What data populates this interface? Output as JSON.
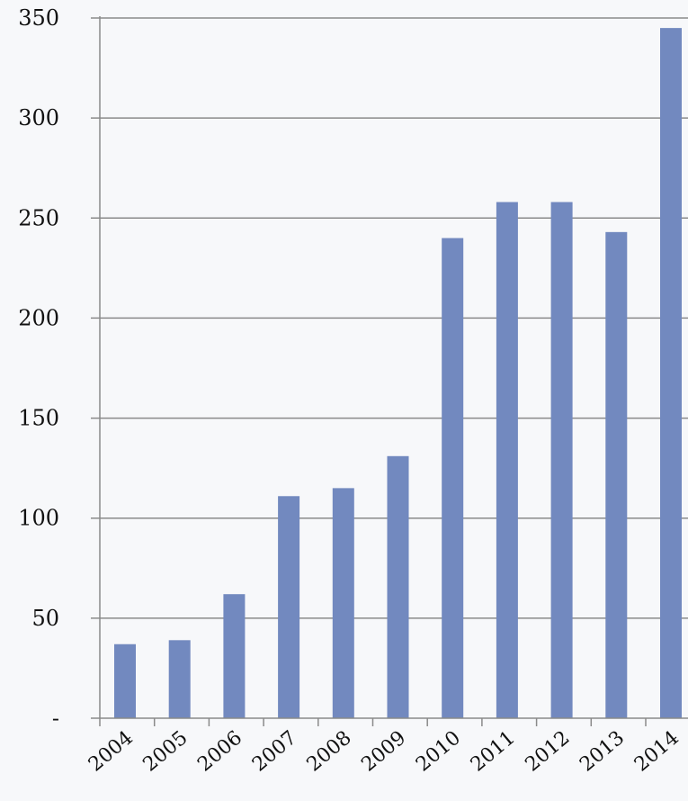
{
  "chart_data": {
    "type": "bar",
    "title": "",
    "xlabel": "",
    "ylabel": "",
    "categories": [
      "2004",
      "2005",
      "2006",
      "2007",
      "2008",
      "2009",
      "2010",
      "2011",
      "2012",
      "2013",
      "2014"
    ],
    "values": [
      37,
      39,
      62,
      111,
      115,
      131,
      240,
      258,
      258,
      243,
      345
    ],
    "ylim": [
      0,
      350
    ],
    "yticks": [
      0,
      50,
      100,
      150,
      200,
      250,
      300,
      350
    ],
    "ytick_labels": [
      "-",
      "50",
      "100",
      "150",
      "200",
      "250",
      "300",
      "350"
    ],
    "grid": true,
    "legend": "none",
    "colors": {
      "bar": "#7289bf",
      "grid": "#8a8a8a",
      "axis": "#8a8a8a",
      "background": "#f7f8fa"
    }
  }
}
